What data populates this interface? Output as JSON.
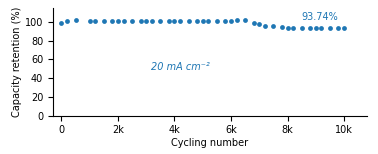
{
  "chart_data": {
    "type": "scatter",
    "x": [
      0,
      200,
      500,
      1000,
      1200,
      1500,
      1800,
      2000,
      2200,
      2500,
      2800,
      3000,
      3200,
      3500,
      3800,
      4000,
      4200,
      4500,
      4800,
      5000,
      5200,
      5500,
      5800,
      6000,
      6200,
      6500,
      6800,
      7000,
      7200,
      7500,
      7800,
      8000,
      8200,
      8500,
      8800,
      9000,
      9200,
      9500,
      9800,
      10000
    ],
    "values": [
      98.5,
      100.5,
      101.5,
      100.8,
      101.2,
      101.0,
      100.9,
      101.3,
      101.0,
      100.8,
      101.1,
      100.9,
      100.7,
      101.0,
      100.8,
      101.2,
      100.9,
      101.0,
      100.8,
      101.1,
      100.9,
      100.7,
      101.0,
      101.1,
      102.0,
      101.8,
      98.5,
      97.5,
      96.0,
      95.5,
      94.5,
      93.8,
      93.2,
      93.5,
      93.3,
      93.4,
      93.5,
      93.6,
      93.7,
      93.74
    ],
    "xlabel": "Cycling number",
    "ylabel": "Capacity retention (%)",
    "xlim": [
      -300,
      10800
    ],
    "ylim": [
      0,
      115
    ],
    "xticks": [
      {
        "value": 0,
        "label": "0"
      },
      {
        "value": 2000,
        "label": "2k"
      },
      {
        "value": 4000,
        "label": "4k"
      },
      {
        "value": 6000,
        "label": "6k"
      },
      {
        "value": 8000,
        "label": "8k"
      },
      {
        "value": 10000,
        "label": "10k"
      }
    ],
    "yticks": [
      0,
      20,
      40,
      60,
      80,
      100
    ],
    "annotations": [
      {
        "text": "93.74%",
        "x": 10000,
        "y": 93.74
      },
      {
        "text": "20 mA cm⁻²",
        "x": 4200,
        "y": 52
      }
    ],
    "grid": false
  }
}
